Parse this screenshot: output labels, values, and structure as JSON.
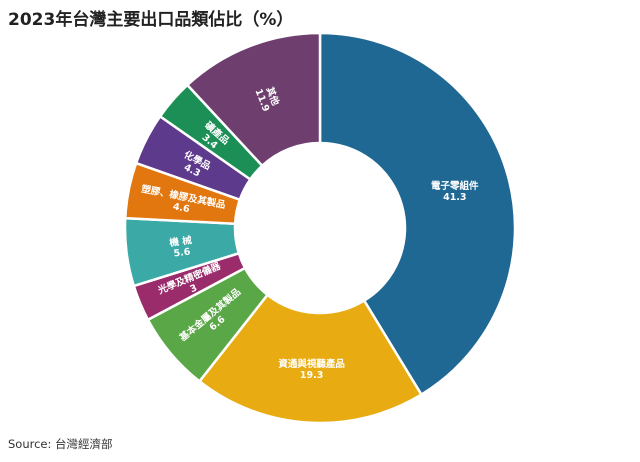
{
  "title": "2023年台灣主要出口品類佔比（%）",
  "source": "Source: 台灣經濟部",
  "chart_data": {
    "type": "pie",
    "title": "2023年台灣主要出口品類佔比（%）",
    "hole": "donut",
    "categories": [
      "電子零組件",
      "資通與視聽產品",
      "基本金屬及其製品",
      "光學及精密儀器",
      "機 械",
      "塑膠、橡膠及其製品",
      "化學品",
      "礦產品",
      "其他"
    ],
    "values": [
      41.3,
      19.3,
      6.6,
      3,
      5.6,
      4.6,
      4.3,
      3.4,
      11.9
    ],
    "value_labels": [
      "41.3",
      "19.3",
      "6.6",
      "3",
      "5.6",
      "4.6",
      "4.3",
      "3.4",
      "11.9"
    ],
    "colors": [
      "#1f6893",
      "#e8ac12",
      "#5aa747",
      "#9a2c6c",
      "#3ba9a6",
      "#e2770f",
      "#5e3a8c",
      "#1b8f56",
      "#6e3f6e"
    ]
  }
}
